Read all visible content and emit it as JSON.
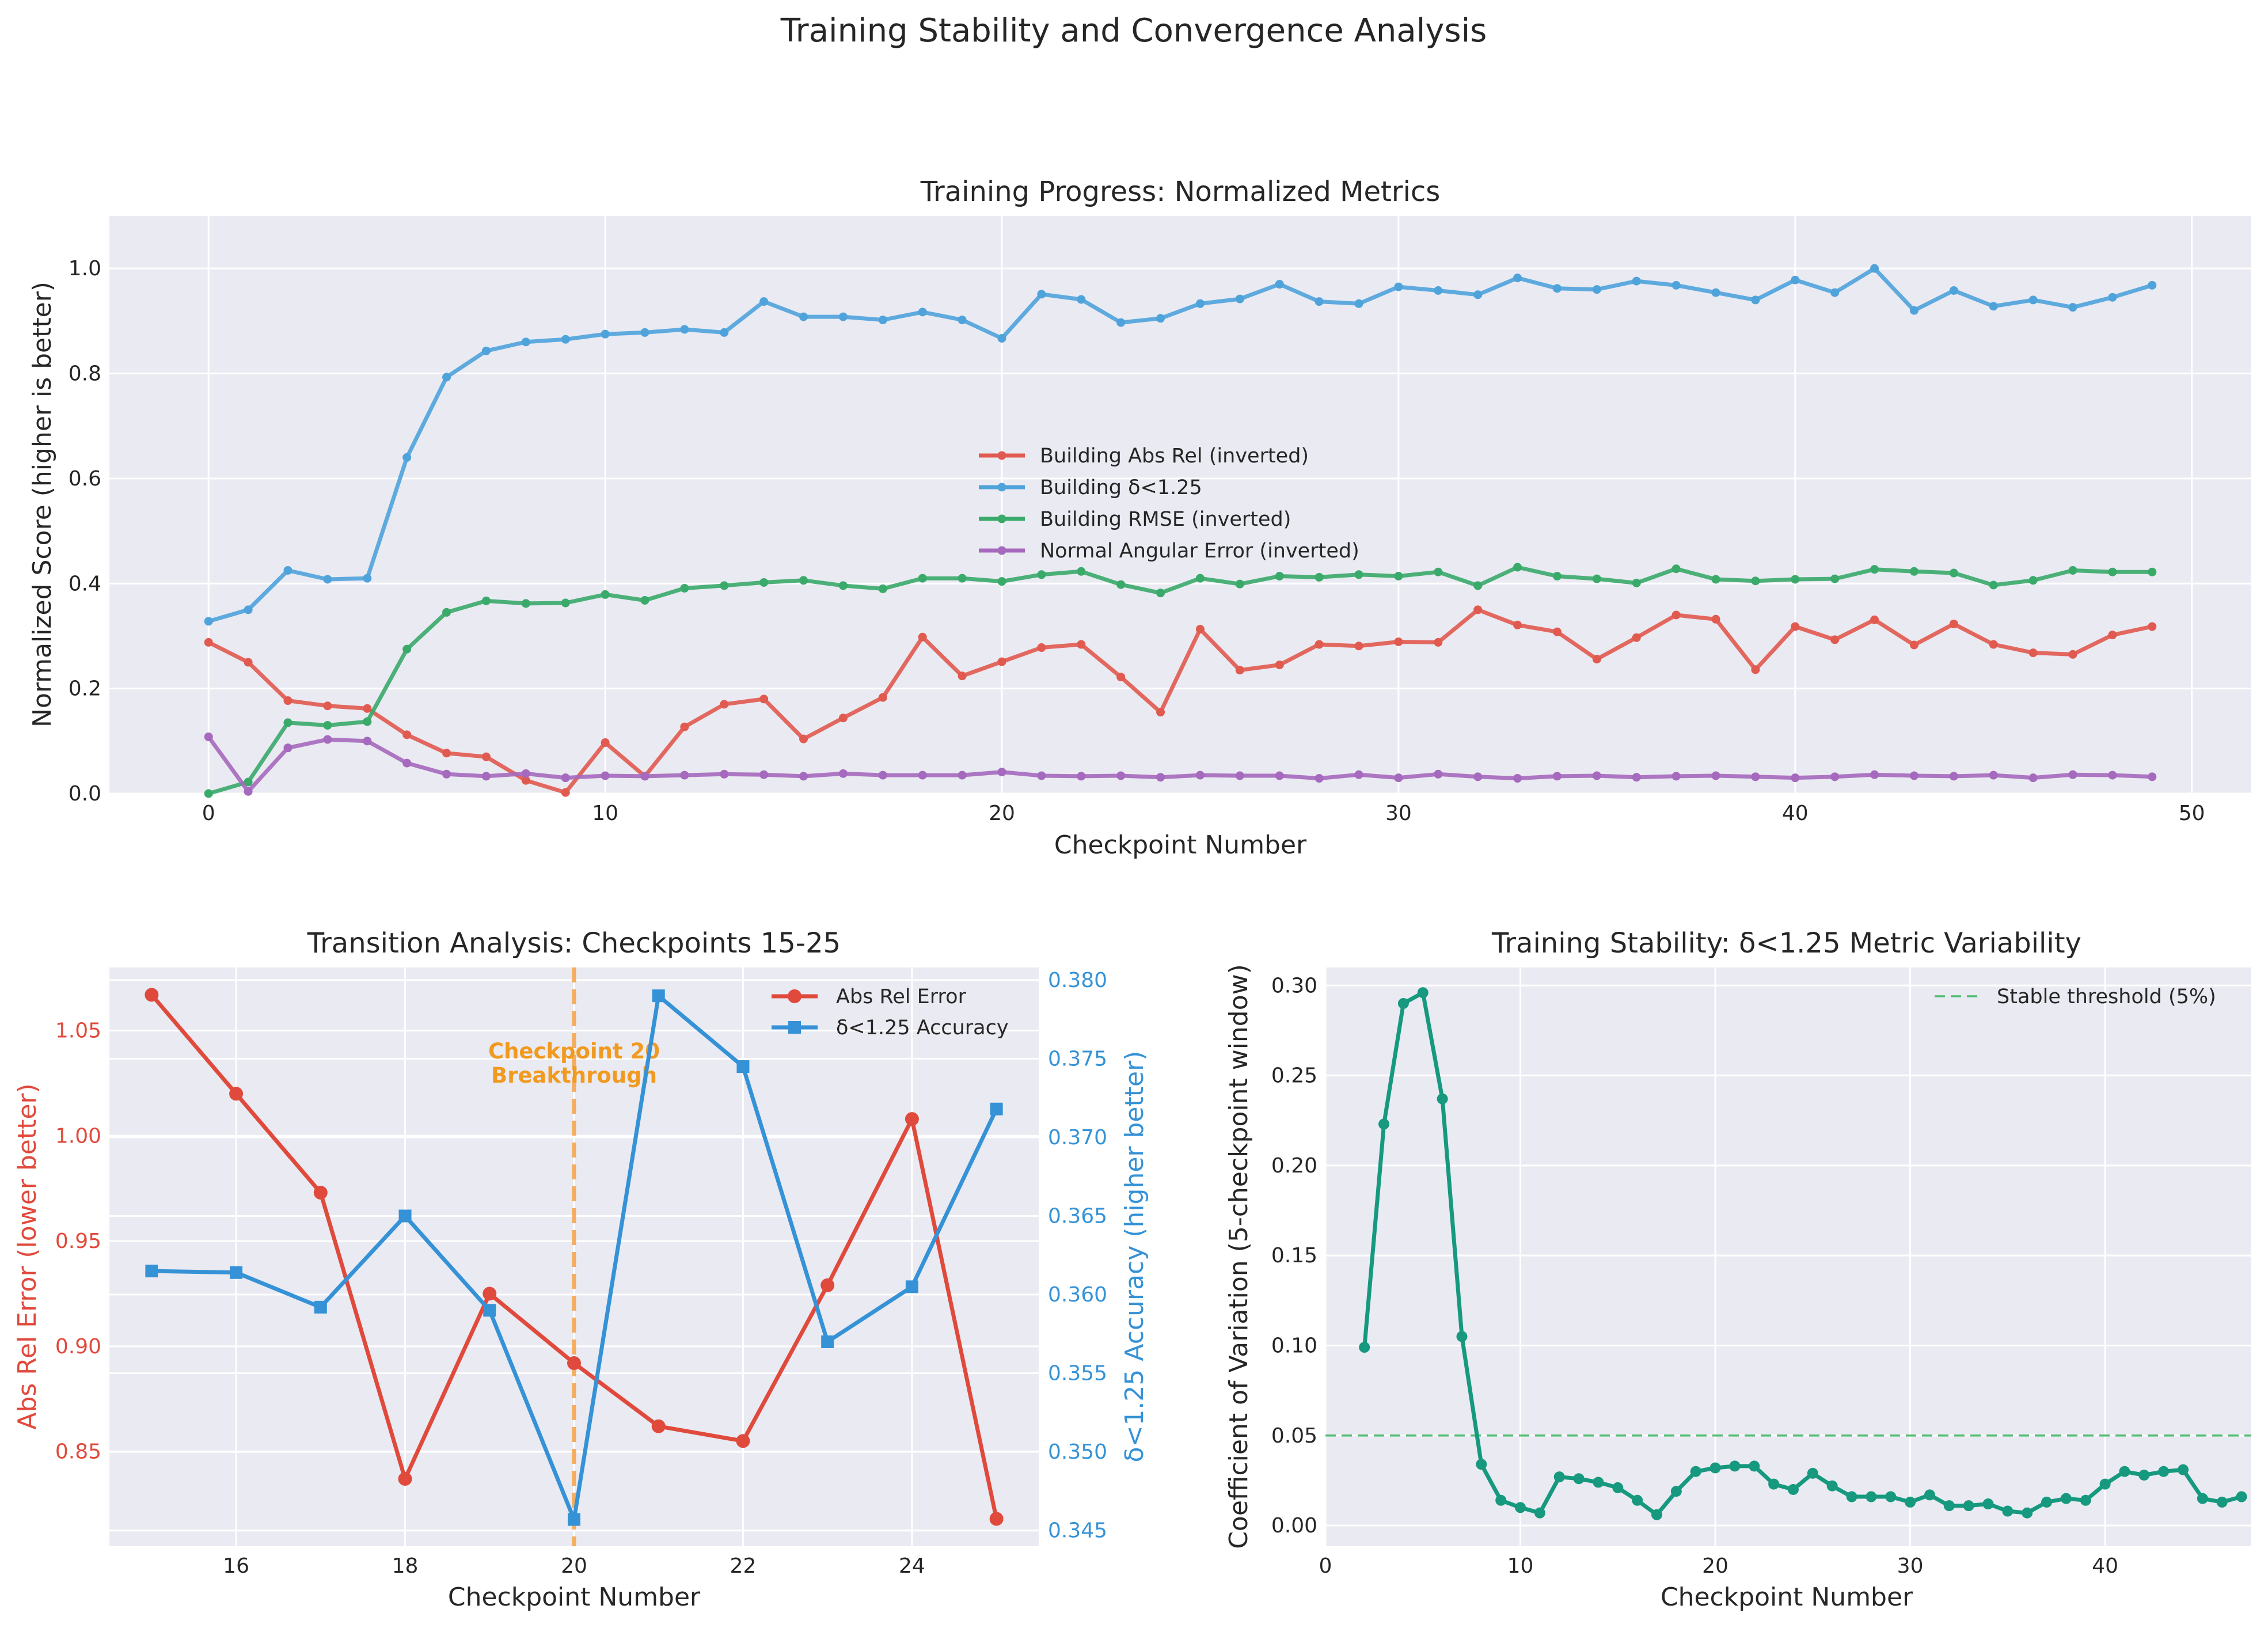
{
  "figure": {
    "title": "Training Stability and Convergence Analysis"
  },
  "chart_data": [
    {
      "type": "line",
      "title": "Training Progress: Normalized Metrics",
      "xlabel": "Checkpoint Number",
      "ylabel": "Normalized Score (higher is better)",
      "xlim": [
        -2.5,
        51.5
      ],
      "ylim": [
        0,
        1.1
      ],
      "xticks": [
        0,
        10,
        20,
        30,
        40,
        50
      ],
      "yticks": [
        0.0,
        0.2,
        0.4,
        0.6,
        0.8,
        1.0
      ],
      "grid": true,
      "legend": "center",
      "x": [
        0,
        1,
        2,
        3,
        4,
        5,
        6,
        7,
        8,
        9,
        10,
        11,
        12,
        13,
        14,
        15,
        16,
        17,
        18,
        19,
        20,
        21,
        22,
        23,
        24,
        25,
        26,
        27,
        28,
        29,
        30,
        31,
        32,
        33,
        34,
        35,
        36,
        37,
        38,
        39,
        40,
        41,
        42,
        43,
        44,
        45,
        46,
        47,
        48,
        49
      ],
      "series": [
        {
          "name": "Building Abs Rel (inverted)",
          "color": "#e15a4f",
          "values": [
            0.288,
            0.25,
            0.177,
            0.167,
            0.162,
            0.112,
            0.077,
            0.07,
            0.025,
            0.002,
            0.097,
            0.033,
            0.127,
            0.17,
            0.18,
            0.104,
            0.144,
            0.183,
            0.298,
            0.224,
            0.251,
            0.278,
            0.284,
            0.222,
            0.155,
            0.313,
            0.235,
            0.245,
            0.284,
            0.281,
            0.289,
            0.288,
            0.35,
            0.321,
            0.308,
            0.256,
            0.297,
            0.34,
            0.332,
            0.236,
            0.318,
            0.293,
            0.331,
            0.283,
            0.323,
            0.284,
            0.268,
            0.265,
            0.302,
            0.318
          ]
        },
        {
          "name": "Building δ<1.25",
          "color": "#4fa3db",
          "values": [
            0.328,
            0.35,
            0.425,
            0.408,
            0.41,
            0.64,
            0.793,
            0.843,
            0.86,
            0.865,
            0.875,
            0.878,
            0.884,
            0.878,
            0.937,
            0.908,
            0.908,
            0.902,
            0.917,
            0.902,
            0.867,
            0.951,
            0.941,
            0.897,
            0.905,
            0.933,
            0.942,
            0.97,
            0.937,
            0.933,
            0.965,
            0.958,
            0.95,
            0.982,
            0.962,
            0.96,
            0.976,
            0.968,
            0.954,
            0.94,
            0.978,
            0.954,
            1.0,
            0.92,
            0.958,
            0.928,
            0.94,
            0.926,
            0.945,
            0.968
          ]
        },
        {
          "name": "Building RMSE (inverted)",
          "color": "#3aaa6a",
          "values": [
            0.0,
            0.022,
            0.135,
            0.13,
            0.137,
            0.275,
            0.345,
            0.367,
            0.362,
            0.363,
            0.379,
            0.368,
            0.391,
            0.396,
            0.402,
            0.406,
            0.396,
            0.39,
            0.41,
            0.41,
            0.404,
            0.417,
            0.423,
            0.398,
            0.382,
            0.41,
            0.399,
            0.414,
            0.412,
            0.417,
            0.414,
            0.422,
            0.396,
            0.431,
            0.414,
            0.409,
            0.401,
            0.428,
            0.408,
            0.405,
            0.408,
            0.409,
            0.427,
            0.423,
            0.42,
            0.397,
            0.406,
            0.425,
            0.422,
            0.422
          ]
        },
        {
          "name": "Normal Angular Error (inverted)",
          "color": "#a569bd",
          "values": [
            0.108,
            0.004,
            0.087,
            0.103,
            0.1,
            0.058,
            0.037,
            0.033,
            0.038,
            0.03,
            0.034,
            0.033,
            0.035,
            0.037,
            0.036,
            0.033,
            0.038,
            0.035,
            0.035,
            0.035,
            0.041,
            0.034,
            0.033,
            0.034,
            0.031,
            0.035,
            0.034,
            0.034,
            0.029,
            0.036,
            0.03,
            0.037,
            0.032,
            0.029,
            0.033,
            0.034,
            0.031,
            0.033,
            0.034,
            0.032,
            0.03,
            0.032,
            0.036,
            0.034,
            0.033,
            0.035,
            0.03,
            0.036,
            0.035,
            0.032
          ]
        }
      ]
    },
    {
      "type": "line",
      "title": "Transition Analysis: Checkpoints 15-25",
      "xlabel": "Checkpoint Number",
      "ylabel": "Abs Rel Error (lower better)",
      "y2label": "δ<1.25 Accuracy (higher better)",
      "xlim": [
        14.5,
        25.5
      ],
      "ylim": [
        0.805,
        1.08
      ],
      "y2lim": [
        0.344,
        0.3808
      ],
      "xticks": [
        16,
        18,
        20,
        22,
        24
      ],
      "yticks": [
        0.85,
        0.9,
        0.95,
        1.0,
        1.05
      ],
      "y2ticks": [
        0.345,
        0.35,
        0.355,
        0.36,
        0.365,
        0.37,
        0.375,
        0.38
      ],
      "grid": true,
      "legend": "top-right",
      "x": [
        15,
        16,
        17,
        18,
        19,
        20,
        21,
        22,
        23,
        24,
        25
      ],
      "series": [
        {
          "name": "Abs Rel Error",
          "axis": "left",
          "color": "#e04a3c",
          "marker": "circle",
          "values": [
            1.067,
            1.02,
            0.973,
            0.837,
            0.925,
            0.892,
            0.862,
            0.855,
            0.929,
            1.008,
            0.818
          ]
        },
        {
          "name": "δ<1.25 Accuracy",
          "axis": "right",
          "color": "#3592d6",
          "marker": "square",
          "values": [
            0.3615,
            0.3614,
            0.3592,
            0.365,
            0.359,
            0.3457,
            0.379,
            0.3745,
            0.357,
            0.3605,
            0.3718
          ]
        }
      ],
      "annotation": {
        "x": 20,
        "line_color": "#f5a142",
        "text_color": "#f19a20",
        "text_line1": "Checkpoint 20",
        "text_line2": "Breakthrough"
      }
    },
    {
      "type": "line",
      "title": "Training Stability: δ<1.25 Metric Variability",
      "xlabel": "Checkpoint Number",
      "ylabel": "Coefficient of Variation (5-checkpoint window)",
      "xlim": [
        0,
        47.5
      ],
      "ylim": [
        -0.0115,
        0.31
      ],
      "xticks": [
        0,
        10,
        20,
        30,
        40
      ],
      "yticks": [
        0.0,
        0.05,
        0.1,
        0.15,
        0.2,
        0.25,
        0.3
      ],
      "grid": true,
      "legend": "top-right",
      "x": [
        2,
        3,
        4,
        5,
        6,
        7,
        8,
        9,
        10,
        11,
        12,
        13,
        14,
        15,
        16,
        17,
        18,
        19,
        20,
        21,
        22,
        23,
        24,
        25,
        26,
        27,
        28,
        29,
        30,
        31,
        32,
        33,
        34,
        35,
        36,
        37,
        38,
        39,
        40,
        41,
        42,
        43,
        44,
        45,
        46,
        47
      ],
      "series": [
        {
          "name": "",
          "color": "#16997e",
          "values": [
            0.099,
            0.223,
            0.29,
            0.296,
            0.237,
            0.105,
            0.034,
            0.014,
            0.01,
            0.007,
            0.027,
            0.026,
            0.024,
            0.021,
            0.014,
            0.006,
            0.019,
            0.03,
            0.032,
            0.033,
            0.033,
            0.023,
            0.02,
            0.029,
            0.022,
            0.016,
            0.016,
            0.016,
            0.013,
            0.017,
            0.011,
            0.011,
            0.012,
            0.008,
            0.007,
            0.013,
            0.015,
            0.014,
            0.023,
            0.03,
            0.028,
            0.03,
            0.031,
            0.015,
            0.013,
            0.016
          ]
        }
      ],
      "threshold": {
        "name": "Stable threshold (5%)",
        "value": 0.05,
        "color": "#4dbd6d"
      }
    }
  ]
}
